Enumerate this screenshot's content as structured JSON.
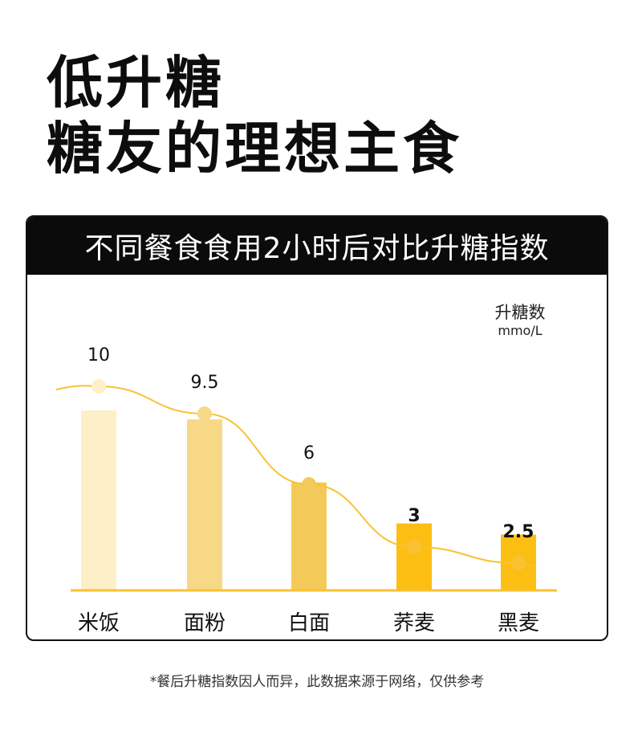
{
  "headline": {
    "line1": "低升糖",
    "line2": "糖友的理想主食"
  },
  "chart_data": {
    "type": "bar",
    "title": "不同餐食食用2小时后对比升糖指数",
    "ylabel": "升糖数",
    "unit": "mmo/L",
    "categories": [
      "米饭",
      "面粉",
      "白面",
      "荞麦",
      "黑麦"
    ],
    "values": [
      10,
      9.5,
      6,
      3,
      2.5
    ],
    "value_labels": [
      "10",
      "9.5",
      "6",
      "3",
      "2.5"
    ],
    "ylim": [
      0,
      10
    ],
    "colors": {
      "bars": [
        "#FDF0C8",
        "#F6D887",
        "#F3CA5A",
        "#FDBE14",
        "#FDBE14"
      ],
      "dots": [
        "#FDF0C8",
        "#F6D887",
        "#F3CA5A",
        "#F8C232",
        "#F8C232"
      ],
      "line": "#F8C232",
      "baseline": "#F8C232"
    },
    "line_overlay": true,
    "grid": false,
    "legend": "none"
  },
  "footnote": "*餐后升糖指数因人而异，此数据来源于网络，仅供参考"
}
